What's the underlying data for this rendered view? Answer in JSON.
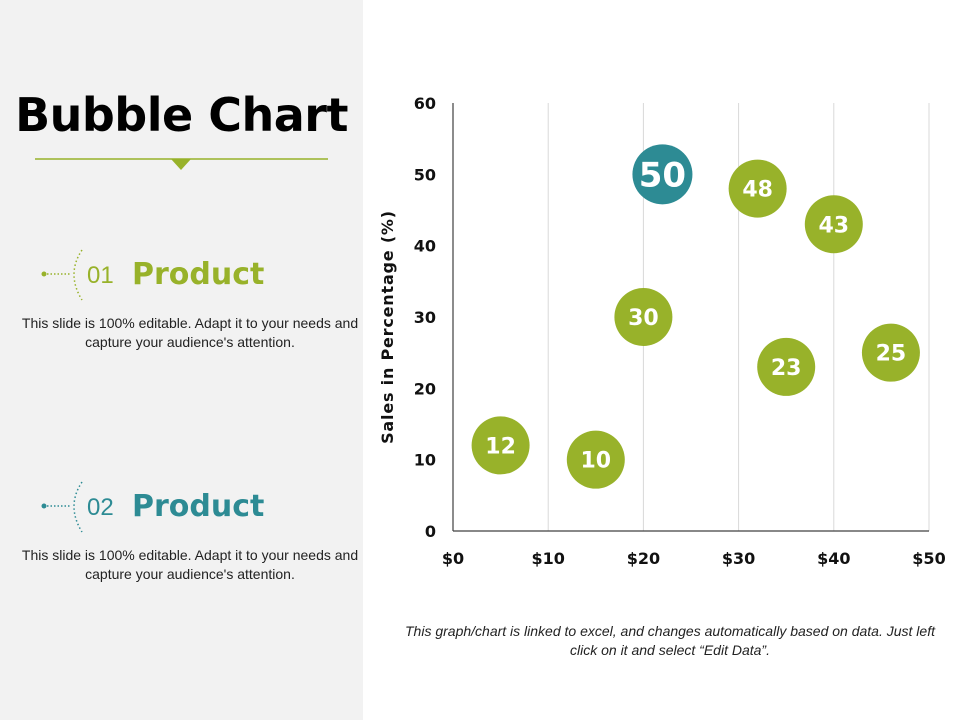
{
  "slide": {
    "title": "Bubble Chart",
    "accent_green": "#98b22a",
    "accent_teal": "#2d8b94"
  },
  "legend": [
    {
      "number": "01",
      "heading": "Product",
      "description": "This slide is 100% editable. Adapt it to your needs and capture your audience's attention.",
      "color": "#98b22a"
    },
    {
      "number": "02",
      "heading": "Product",
      "description": "This slide is 100% editable. Adapt it to your needs and capture your audience's attention.",
      "color": "#2d8b94"
    }
  ],
  "footnote": "This graph/chart is linked to excel, and changes automatically based on data. Just left click on it and select “Edit Data”.",
  "chart_data": {
    "type": "scatter",
    "title": "",
    "xlabel": "",
    "ylabel": "Sales in Percentage (%)",
    "xlim": [
      0,
      50
    ],
    "ylim": [
      0,
      60
    ],
    "x_tick_labels": [
      "$0",
      "$10",
      "$20",
      "$30",
      "$40",
      "$50"
    ],
    "y_tick_labels": [
      "0",
      "10",
      "20",
      "30",
      "40",
      "50",
      "60"
    ],
    "grid": "vertical",
    "series": [
      {
        "name": "Product 01",
        "color": "#98b22a",
        "points": [
          {
            "x": 5,
            "y": 12,
            "size": 12,
            "label": "12"
          },
          {
            "x": 15,
            "y": 10,
            "size": 10,
            "label": "10"
          },
          {
            "x": 20,
            "y": 30,
            "size": 30,
            "label": "30"
          },
          {
            "x": 35,
            "y": 23,
            "size": 23,
            "label": "23"
          },
          {
            "x": 46,
            "y": 25,
            "size": 25,
            "label": "25"
          },
          {
            "x": 32,
            "y": 48,
            "size": 48,
            "label": "48"
          },
          {
            "x": 40,
            "y": 43,
            "size": 43,
            "label": "43"
          }
        ]
      },
      {
        "name": "Product 02",
        "color": "#2d8b94",
        "points": [
          {
            "x": 22,
            "y": 50,
            "size": 50,
            "label": "50"
          }
        ]
      }
    ]
  }
}
